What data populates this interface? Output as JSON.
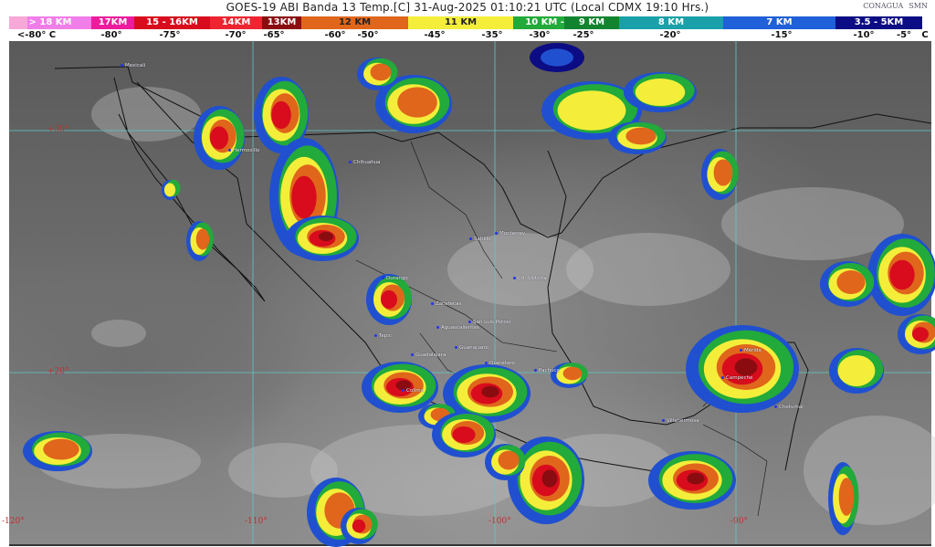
{
  "header": {
    "title": "GOES-19 ABI Banda 13 Temp.[C] 31-Aug-2025 01:10:21 UTC (Local CDMX  19:10 Hrs.)",
    "logos": [
      "CONAGUA",
      "SMN"
    ]
  },
  "scale": {
    "segments": [
      {
        "label": "> 18 KM",
        "color": "#f07ee8"
      },
      {
        "label": "17KM",
        "color": "#ec1c9c"
      },
      {
        "label": "15 - 16KM",
        "color": "#d80c1c"
      },
      {
        "label": "14KM",
        "color": "#ee2430"
      },
      {
        "label": "13KM",
        "color": "#8a0c10"
      },
      {
        "label": "12 KM",
        "color": "#e0661c"
      },
      {
        "label": "11 KM",
        "color": "#f4ee3a"
      },
      {
        "label": "10 KM - ",
        "color": "#22aa3a"
      },
      {
        "label": "9 KM",
        "color": "#128430"
      },
      {
        "label": "8 KM",
        "color": "#1aa0a8"
      },
      {
        "label": "7 KM",
        "color": "#2060d8"
      },
      {
        "label": "3.5 - 5KM",
        "color": "#0c0c84"
      }
    ],
    "temps": [
      "<-80° C",
      "-80°",
      "-75°",
      "-70°",
      "-65°",
      "-60°",
      "-50°",
      "-45°",
      "-35°",
      "-30°",
      "-25°",
      "-20°",
      "-15°",
      "-10°",
      "-5°",
      "C"
    ]
  },
  "map": {
    "latitudes": [
      "+30°",
      "+20°"
    ],
    "longitudes": [
      "-120°",
      "-110°",
      "-100°",
      "-90°"
    ],
    "cities": [
      "Mexicali",
      "Hermosillo",
      "Chihuahua",
      "Monterrey",
      "Saltillo",
      "Cd. Victoria",
      "Durango",
      "Zacatecas",
      "San Luis Potosí",
      "Aguascalientes",
      "Tepic",
      "Guadalajara",
      "Guanajuato",
      "Querétaro",
      "Pachuca",
      "Colima",
      "Mérida",
      "Campeche",
      "Chetumal",
      "Villahermosa"
    ],
    "colors": {
      "land": "#6a6a6a",
      "grid": "#5fc8c8",
      "border": "#111111",
      "coord_label": "#c03030"
    }
  }
}
